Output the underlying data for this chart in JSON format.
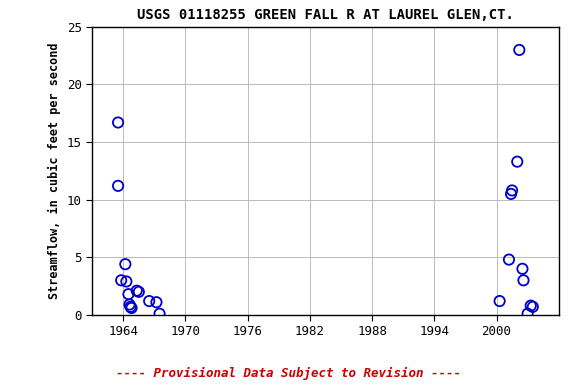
{
  "title": "USGS 01118255 GREEN FALL R AT LAUREL GLEN,CT.",
  "ylabel": "Streamflow, in cubic feet per second",
  "x_values": [
    1963.5,
    1963.5,
    1963.8,
    1964.2,
    1964.5,
    1964.6,
    1964.7,
    1964.8,
    1964.3,
    1965.3,
    1965.5,
    1966.5,
    1967.2,
    1967.5,
    2000.3,
    2001.2,
    2001.4,
    2001.5,
    2002.0,
    2002.2,
    2002.5,
    2002.6,
    2003.0,
    2003.3,
    2003.5
  ],
  "y_values": [
    16.7,
    11.2,
    3.0,
    4.4,
    1.8,
    0.9,
    0.7,
    0.6,
    2.9,
    2.1,
    2.0,
    1.2,
    1.1,
    0.1,
    1.2,
    4.8,
    10.5,
    10.8,
    13.3,
    23.0,
    4.0,
    3.0,
    0.1,
    0.8,
    0.7
  ],
  "marker_color": "#0000cc",
  "marker_size": 55,
  "xlim": [
    1961,
    2006
  ],
  "ylim": [
    0,
    25
  ],
  "xticks": [
    1964,
    1970,
    1976,
    1982,
    1988,
    1994,
    2000
  ],
  "yticks": [
    0,
    5,
    10,
    15,
    20,
    25
  ],
  "grid_color": "#bbbbbb",
  "bg_color": "#ffffff",
  "footnote": "---- Provisional Data Subject to Revision ----",
  "footnote_color": "#cc0000"
}
